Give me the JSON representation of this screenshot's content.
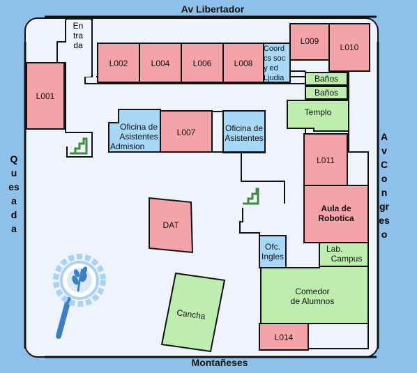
{
  "streets": {
    "north": "Av Libertador",
    "south": "Montañeses",
    "west": "Quesada",
    "east": "Av Congreso"
  },
  "rooms": {
    "entrada": "Entrada",
    "l001": "L001",
    "l002": "L002",
    "l004": "L004",
    "l006": "L006",
    "l008": "L008",
    "coord_line1": "Coord",
    "coord_line2": "cs soc",
    "coord_line3": "y ed",
    "coord_line4": "Ljudia",
    "l009": "L009",
    "l010": "L010",
    "banos1": "Baños",
    "banos2": "Baños",
    "templo": "Templo",
    "oficina_admision_line1": "Oficina de",
    "oficina_admision_line2": "Asistentes",
    "oficina_admision_line3": "Admision",
    "l007": "L007",
    "oficina_asist_line1": "Oficina de",
    "oficina_asist_line2": "Asistentes",
    "l011": "L011",
    "aula_line1": "Aula de",
    "aula_line2": "Robotica",
    "dat": "DAT",
    "ofc_line1": "Ofc.",
    "ofc_line2": "Ingles",
    "lab_line1": "Lab.",
    "lab_line2": "Campus",
    "comedor_line1": "Comedor",
    "comedor_line2": "de Alumnos",
    "cancha": "Cancha",
    "l014": "L014"
  },
  "colors": {
    "background": "#8ec0ec",
    "campus": "#eef3fc",
    "classroom": "#f4a3a8",
    "office": "#a7d8f7",
    "service": "#bdeeae",
    "stairs": "#3e8a3a",
    "logo": "#3d7fc4"
  },
  "icons": [
    "stairs-icon",
    "stairs-icon",
    "wheat-magnifier-logo"
  ]
}
